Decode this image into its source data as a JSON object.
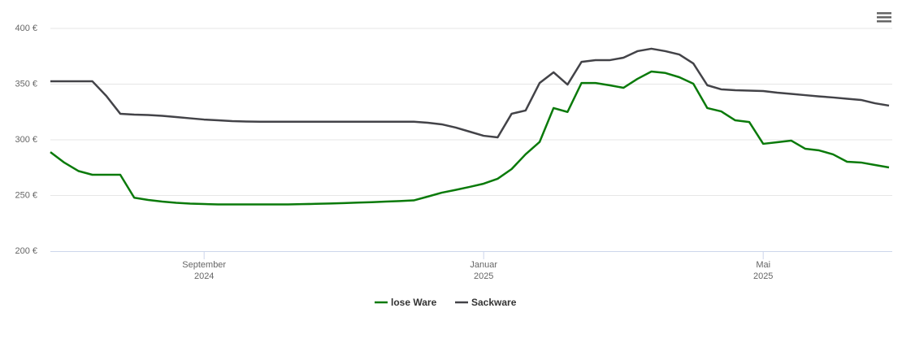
{
  "chart_data": {
    "type": "line",
    "categories": [
      null,
      null,
      null,
      null,
      null,
      null,
      null,
      null,
      null,
      null,
      null,
      "September 2024",
      null,
      null,
      null,
      null,
      null,
      null,
      null,
      null,
      null,
      null,
      null,
      null,
      null,
      null,
      null,
      null,
      null,
      null,
      null,
      "Januar 2025",
      null,
      null,
      null,
      null,
      null,
      null,
      null,
      null,
      null,
      null,
      null,
      null,
      null,
      null,
      null,
      null,
      null,
      null,
      null,
      "Mai 2025",
      null,
      null,
      null,
      null,
      null,
      null,
      null,
      null,
      null
    ],
    "series": [
      {
        "name": "lose Ware",
        "color": "#0a7a0a",
        "values": [
          289,
          279.5,
          272,
          268.6,
          268.6,
          268.6,
          248,
          246,
          244.5,
          243.4,
          242.7,
          242.3,
          242,
          242,
          242,
          242,
          242,
          242,
          242.2,
          242.5,
          242.8,
          243.2,
          243.6,
          244,
          244.5,
          245,
          245.6,
          249,
          252.5,
          255,
          257.7,
          260.6,
          265,
          273.7,
          287,
          298,
          328.5,
          325,
          351,
          351,
          349,
          346.7,
          354.7,
          361.3,
          360,
          356.2,
          350.4,
          328.5,
          325.5,
          317.5,
          316,
          296.4,
          297.8,
          299.3,
          292,
          290.5,
          286.9,
          280.3,
          279.6,
          277.4,
          275.2
        ]
      },
      {
        "name": "Sackware",
        "color": "#434348",
        "values": [
          352.6,
          352.6,
          352.6,
          352.6,
          339.4,
          323.4,
          322.6,
          322.3,
          321.5,
          320.4,
          319.3,
          318.2,
          317.5,
          316.8,
          316.4,
          316.2,
          316.2,
          316.2,
          316.2,
          316.2,
          316.2,
          316.2,
          316.2,
          316.2,
          316.2,
          316.2,
          316.2,
          315.3,
          313.9,
          311,
          307.3,
          303.6,
          302.2,
          323.4,
          326.3,
          351,
          360.6,
          349.6,
          370,
          371.5,
          371.5,
          373.7,
          379.6,
          381.8,
          379.6,
          376.6,
          368.6,
          349,
          345.3,
          344.5,
          344.2,
          343.8,
          342.3,
          341.2,
          340.1,
          339,
          338,
          336.9,
          335.8,
          332.8,
          330.7
        ]
      }
    ],
    "ylim": [
      200,
      400
    ],
    "yticks": [
      {
        "value": 200,
        "label": "200 €"
      },
      {
        "value": 250,
        "label": "250 €"
      },
      {
        "value": 300,
        "label": "300 €"
      },
      {
        "value": 350,
        "label": "350 €"
      },
      {
        "value": 400,
        "label": "400 €"
      }
    ],
    "grid": true,
    "legend": "bottom"
  }
}
